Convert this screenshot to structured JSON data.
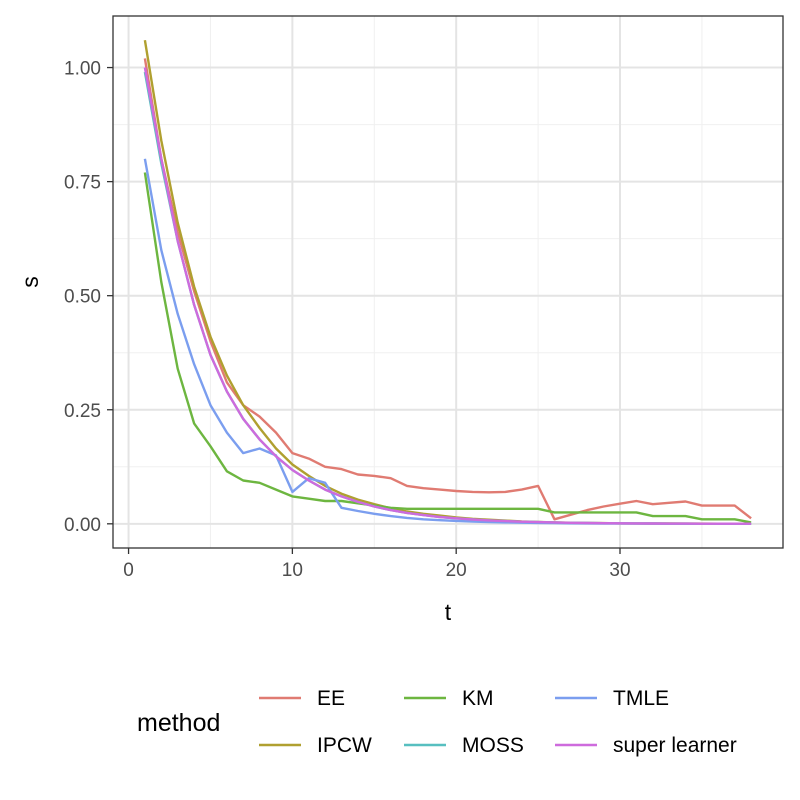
{
  "chart_data": {
    "type": "line",
    "xlabel": "t",
    "ylabel": "s",
    "xlim": [
      -0.95,
      39.95
    ],
    "ylim": [
      -0.053,
      1.113
    ],
    "x_ticks": [
      0,
      10,
      20,
      30
    ],
    "x_tick_labels": [
      "0",
      "10",
      "20",
      "30"
    ],
    "y_ticks": [
      0,
      0.25,
      0.5,
      0.75,
      1.0
    ],
    "y_tick_labels": [
      "0.00",
      "0.25",
      "0.50",
      "0.75",
      "1.00"
    ],
    "x_minor": [
      5,
      15,
      25,
      35
    ],
    "y_minor": [
      0.125,
      0.375,
      0.625,
      0.875
    ],
    "grid": true,
    "legend_position": "bottom",
    "legend_title": "method",
    "series": [
      {
        "name": "EE",
        "color": "#E07B72",
        "x": [
          1,
          2,
          3,
          4,
          5,
          6,
          7,
          8,
          9,
          10,
          11,
          12,
          13,
          14,
          15,
          16,
          17,
          18,
          19,
          20,
          21,
          22,
          23,
          24,
          25,
          26,
          27,
          28,
          29,
          30,
          31,
          32,
          33,
          34,
          35,
          36,
          37,
          38
        ],
        "y": [
          1.02,
          0.8,
          0.64,
          0.51,
          0.4,
          0.31,
          0.26,
          0.235,
          0.2,
          0.155,
          0.143,
          0.125,
          0.12,
          0.108,
          0.105,
          0.1,
          0.083,
          0.078,
          0.075,
          0.072,
          0.07,
          0.069,
          0.07,
          0.075,
          0.083,
          0.01,
          0.02,
          0.03,
          0.038,
          0.044,
          0.05,
          0.043,
          0.046,
          0.049,
          0.04,
          0.04,
          0.04,
          0.012
        ]
      },
      {
        "name": "IPCW",
        "color": "#B0A030",
        "x": [
          1,
          2,
          3,
          4,
          5,
          6,
          7,
          8,
          9,
          10,
          11,
          12,
          13,
          14,
          15,
          16,
          17,
          18,
          19,
          20,
          21,
          22,
          23,
          24,
          25,
          26,
          27,
          28,
          29,
          30,
          31,
          32,
          33,
          34,
          35,
          36,
          37,
          38
        ],
        "y": [
          1.06,
          0.84,
          0.66,
          0.52,
          0.41,
          0.325,
          0.26,
          0.21,
          0.165,
          0.13,
          0.105,
          0.083,
          0.066,
          0.053,
          0.043,
          0.034,
          0.027,
          0.022,
          0.018,
          0.014,
          0.011,
          0.009,
          0.007,
          0.005,
          0.004,
          0.003,
          0.0025,
          0.002,
          0.0015,
          0.001,
          0.001,
          0.0008,
          0.0006,
          0.0005,
          0.0004,
          0.0003,
          0.0002,
          0.0002
        ]
      },
      {
        "name": "KM",
        "color": "#6DB640",
        "x": [
          1,
          2,
          3,
          4,
          5,
          6,
          7,
          8,
          9,
          10,
          11,
          12,
          13,
          14,
          15,
          16,
          17,
          18,
          19,
          20,
          21,
          22,
          23,
          24,
          25,
          26,
          27,
          28,
          29,
          30,
          31,
          32,
          33,
          34,
          35,
          36,
          37,
          38
        ],
        "y": [
          0.77,
          0.53,
          0.34,
          0.22,
          0.17,
          0.115,
          0.095,
          0.09,
          0.075,
          0.06,
          0.055,
          0.05,
          0.05,
          0.045,
          0.04,
          0.035,
          0.033,
          0.033,
          0.033,
          0.033,
          0.033,
          0.033,
          0.033,
          0.033,
          0.033,
          0.025,
          0.025,
          0.025,
          0.025,
          0.025,
          0.025,
          0.017,
          0.017,
          0.017,
          0.01,
          0.01,
          0.01,
          0.003
        ]
      },
      {
        "name": "MOSS",
        "color": "#57BFC0",
        "x": [
          1,
          2,
          3,
          4,
          5,
          6,
          7,
          8,
          9,
          10,
          11,
          12,
          13,
          14,
          15,
          16,
          17,
          18,
          19,
          20,
          21,
          22,
          23,
          24,
          25,
          26,
          27,
          28,
          29,
          30,
          31,
          32,
          33,
          34,
          35,
          36,
          37,
          38
        ],
        "y": [
          0.99,
          0.79,
          0.62,
          0.48,
          0.37,
          0.29,
          0.23,
          0.185,
          0.148,
          0.118,
          0.095,
          0.075,
          0.06,
          0.048,
          0.038,
          0.03,
          0.024,
          0.019,
          0.015,
          0.012,
          0.0095,
          0.0075,
          0.006,
          0.0047,
          0.0037,
          0.003,
          0.0023,
          0.0018,
          0.0014,
          0.0011,
          0.0009,
          0.0007,
          0.0005,
          0.0004,
          0.0003,
          0.0003,
          0.0002,
          0.0002
        ]
      },
      {
        "name": "TMLE",
        "color": "#7B9EEF",
        "x": [
          1,
          2,
          3,
          4,
          5,
          6,
          7,
          8,
          9,
          10,
          11,
          12,
          13,
          14,
          15,
          16,
          17,
          18,
          19,
          20,
          21,
          22,
          23,
          24,
          25,
          26,
          27,
          28,
          29,
          30,
          31,
          32,
          33,
          34,
          35,
          36,
          37,
          38
        ],
        "y": [
          0.8,
          0.6,
          0.46,
          0.35,
          0.26,
          0.2,
          0.155,
          0.165,
          0.15,
          0.07,
          0.1,
          0.09,
          0.035,
          0.028,
          0.022,
          0.017,
          0.013,
          0.01,
          0.008,
          0.0065,
          0.005,
          0.004,
          0.003,
          0.0025,
          0.002,
          0.0015,
          0.0012,
          0.001,
          0.0008,
          0.0006,
          0.0005,
          0.0004,
          0.0003,
          0.0002,
          0.0002,
          0.0001,
          0.0001,
          0.0001
        ]
      },
      {
        "name": "super learner",
        "color": "#CE6BDD",
        "x": [
          1,
          2,
          3,
          4,
          5,
          6,
          7,
          8,
          9,
          10,
          11,
          12,
          13,
          14,
          15,
          16,
          17,
          18,
          19,
          20,
          21,
          22,
          23,
          24,
          25,
          26,
          27,
          28,
          29,
          30,
          31,
          32,
          33,
          34,
          35,
          36,
          37,
          38
        ],
        "y": [
          1.0,
          0.8,
          0.62,
          0.48,
          0.37,
          0.29,
          0.23,
          0.185,
          0.148,
          0.118,
          0.095,
          0.075,
          0.06,
          0.048,
          0.038,
          0.03,
          0.024,
          0.019,
          0.015,
          0.012,
          0.0095,
          0.0075,
          0.006,
          0.0047,
          0.0037,
          0.003,
          0.0023,
          0.0018,
          0.0014,
          0.0011,
          0.0009,
          0.0007,
          0.0005,
          0.0004,
          0.0003,
          0.0003,
          0.0002,
          0.0002
        ]
      }
    ]
  },
  "legend_order": [
    "EE",
    "KM",
    "TMLE",
    "IPCW",
    "MOSS",
    "super learner"
  ]
}
